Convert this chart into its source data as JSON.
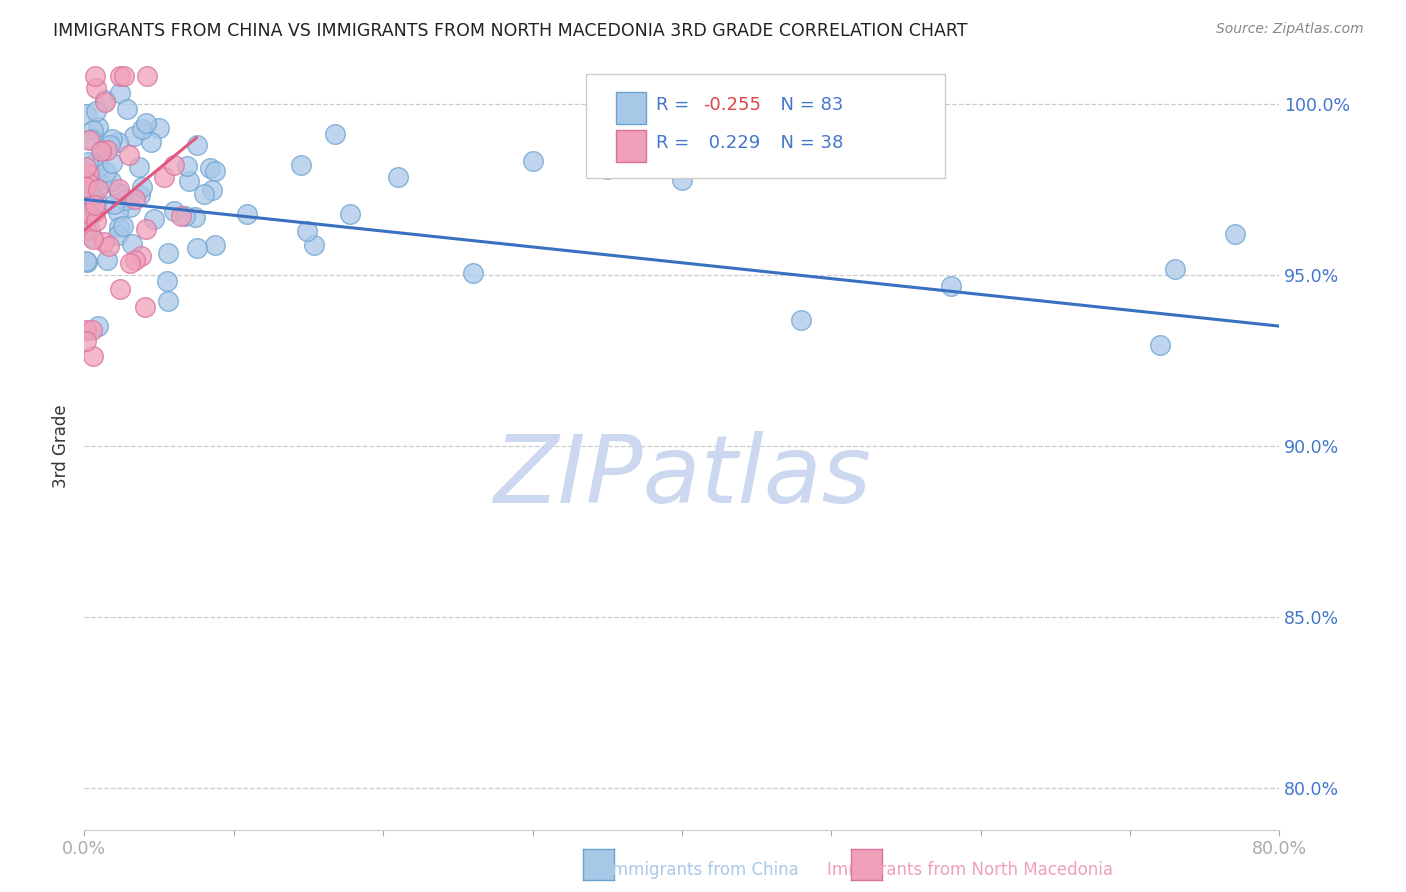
{
  "title": "IMMIGRANTS FROM CHINA VS IMMIGRANTS FROM NORTH MACEDONIA 3RD GRADE CORRELATION CHART",
  "source": "Source: ZipAtlas.com",
  "ylabel": "3rd Grade",
  "x_label_china": "Immigrants from China",
  "x_label_macedonia": "Immigrants from North Macedonia",
  "xlim": [
    0.0,
    0.8
  ],
  "ylim": [
    0.788,
    1.012
  ],
  "yticks": [
    0.8,
    0.85,
    0.9,
    0.95,
    1.0
  ],
  "ytick_labels": [
    "80.0%",
    "85.0%",
    "90.0%",
    "95.0%",
    "100.0%"
  ],
  "xtick_vals": [
    0.0,
    0.1,
    0.2,
    0.3,
    0.4,
    0.5,
    0.6,
    0.7,
    0.8
  ],
  "xtick_labels": [
    "0.0%",
    "",
    "",
    "",
    "",
    "",
    "",
    "",
    "80.0%"
  ],
  "R_china": -0.255,
  "N_china": 83,
  "R_macedonia": 0.229,
  "N_macedonia": 38,
  "china_color": "#a8c8e8",
  "china_edge_color": "#6ba3d0",
  "macedonia_color": "#f0a0b8",
  "macedonia_edge_color": "#d870a0",
  "china_line_color": "#3a70c0",
  "macedonia_line_color": "#e05880",
  "watermark_color": "#ccd8f0",
  "title_color": "#222222",
  "tick_label_color": "#4477cc",
  "xtick_color": "#aaaaaa",
  "grid_color": "#cccccc",
  "background_color": "#ffffff",
  "china_trend_x": [
    0.0,
    0.8
  ],
  "china_trend_y": [
    0.972,
    0.935
  ],
  "mac_trend_x": [
    0.0,
    0.075
  ],
  "mac_trend_y": [
    0.963,
    0.99
  ],
  "china_scatter_seed": 42,
  "mac_scatter_seed": 7
}
